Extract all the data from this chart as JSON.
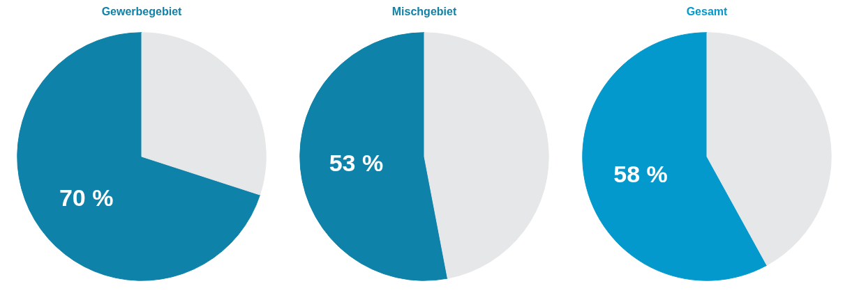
{
  "chart_data": [
    {
      "type": "pie",
      "title": "Gewerbegebiet",
      "categories": [
        null,
        null
      ],
      "values": [
        70,
        30
      ],
      "colors": [
        "#0e82a8",
        "#e6e7e8"
      ],
      "value_labels": [
        "70 %",
        null
      ]
    },
    {
      "type": "pie",
      "title": "Mischgebiet",
      "categories": [
        null,
        null
      ],
      "values": [
        53,
        47
      ],
      "colors": [
        "#0e82a8",
        "#e6e7e8"
      ],
      "value_labels": [
        "53 %",
        null
      ]
    },
    {
      "type": "pie",
      "title": "Gesamt",
      "categories": [
        null,
        null
      ],
      "values": [
        58,
        42
      ],
      "colors": [
        "#0399cd",
        "#e6e7e8"
      ],
      "value_labels": [
        "58 %",
        null
      ]
    }
  ]
}
